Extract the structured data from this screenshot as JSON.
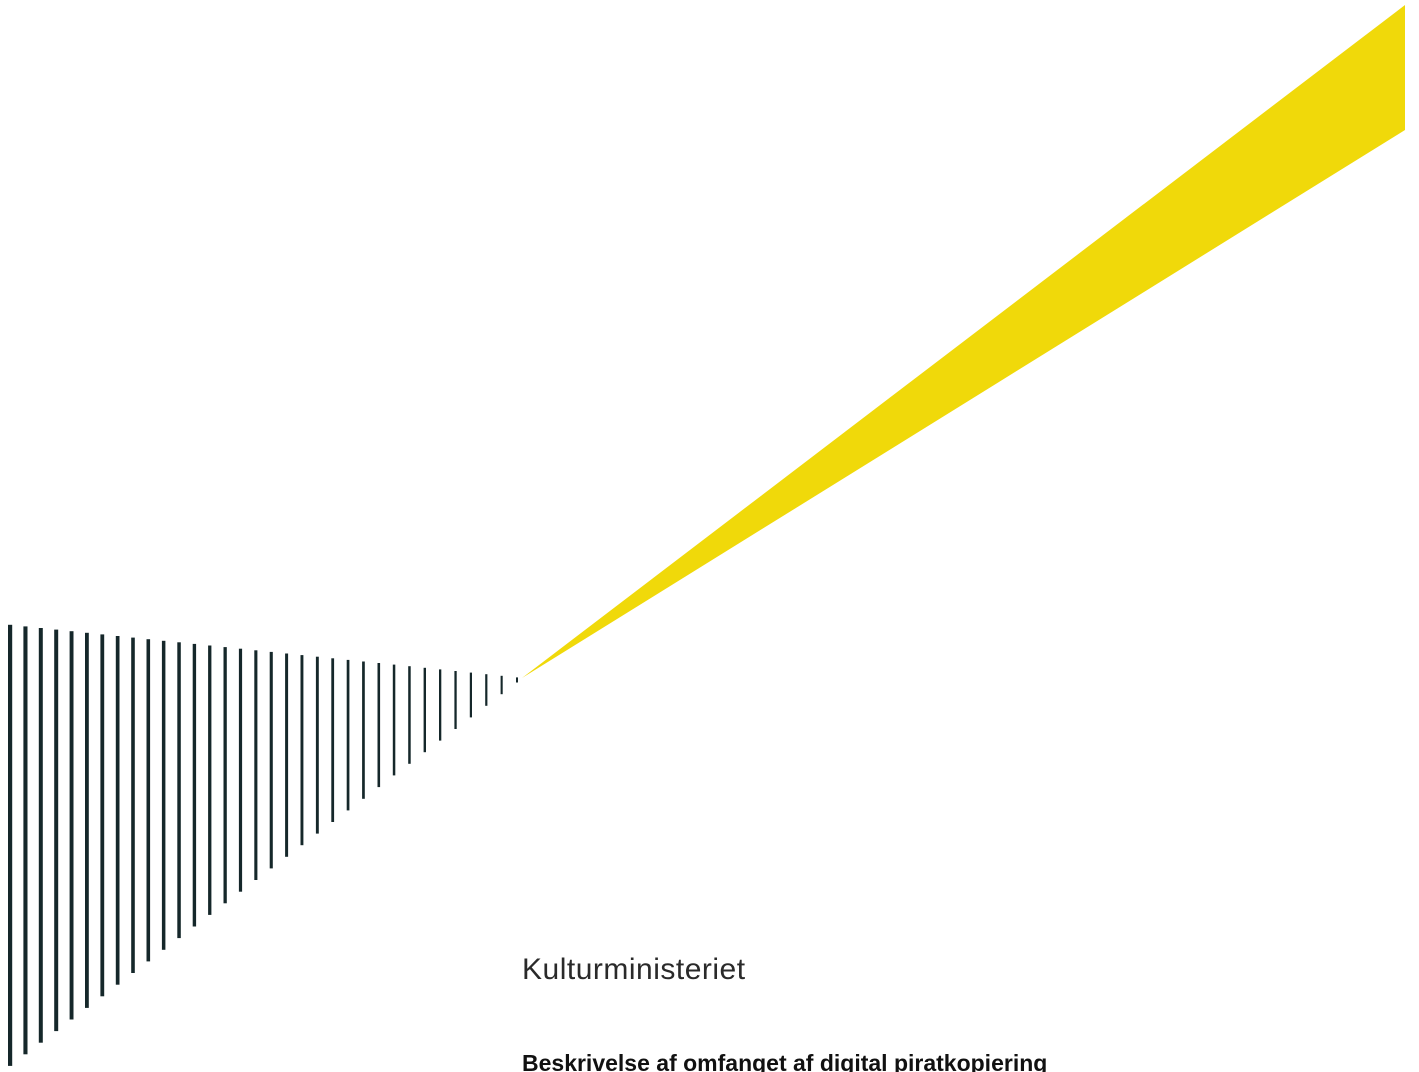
{
  "cover": {
    "ministry": "Kulturministeriet",
    "title": "Beskrivelse af omfanget af digital piratkopiering"
  },
  "colors": {
    "background": "#ffffff",
    "beam": "#f0d90a",
    "stripes": "#15272a",
    "text": "#2a2a2a",
    "title_text": "#111111"
  },
  "artwork": {
    "beam_icon": "yellow-light-beam",
    "stripes_icon": "dark-vertical-stripe-wedge"
  }
}
